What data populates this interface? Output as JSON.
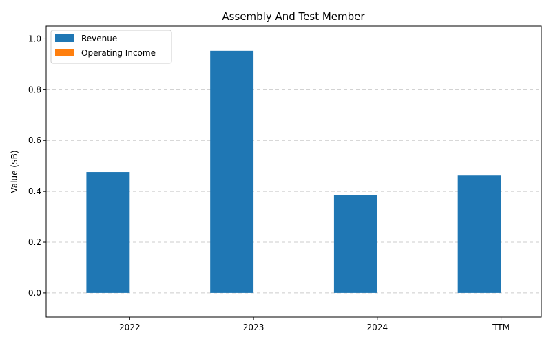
{
  "chart_data": {
    "type": "bar",
    "title": "Assembly And Test Member",
    "xlabel": "",
    "ylabel": "Value ($B)",
    "categories": [
      "2022",
      "2023",
      "2024",
      "TTM"
    ],
    "series": [
      {
        "name": "Revenue",
        "values": [
          0.476,
          0.953,
          0.386,
          0.462
        ]
      },
      {
        "name": "Operating Income",
        "values": [
          0,
          0,
          0,
          0
        ]
      }
    ],
    "ylim": [
      -0.095,
      1.05
    ],
    "yticks": [
      0.0,
      0.2,
      0.4,
      0.6,
      0.8,
      1.0
    ],
    "ytick_labels": [
      "0.0",
      "0.2",
      "0.4",
      "0.6",
      "0.8",
      "1.0"
    ],
    "grid": true,
    "grid_axis": "y",
    "legend_position": "top-left"
  },
  "colors": {
    "Revenue": "#1f77b4",
    "Operating Income": "#ff7f0e",
    "grid": "#cccccc",
    "axis": "#000000"
  }
}
